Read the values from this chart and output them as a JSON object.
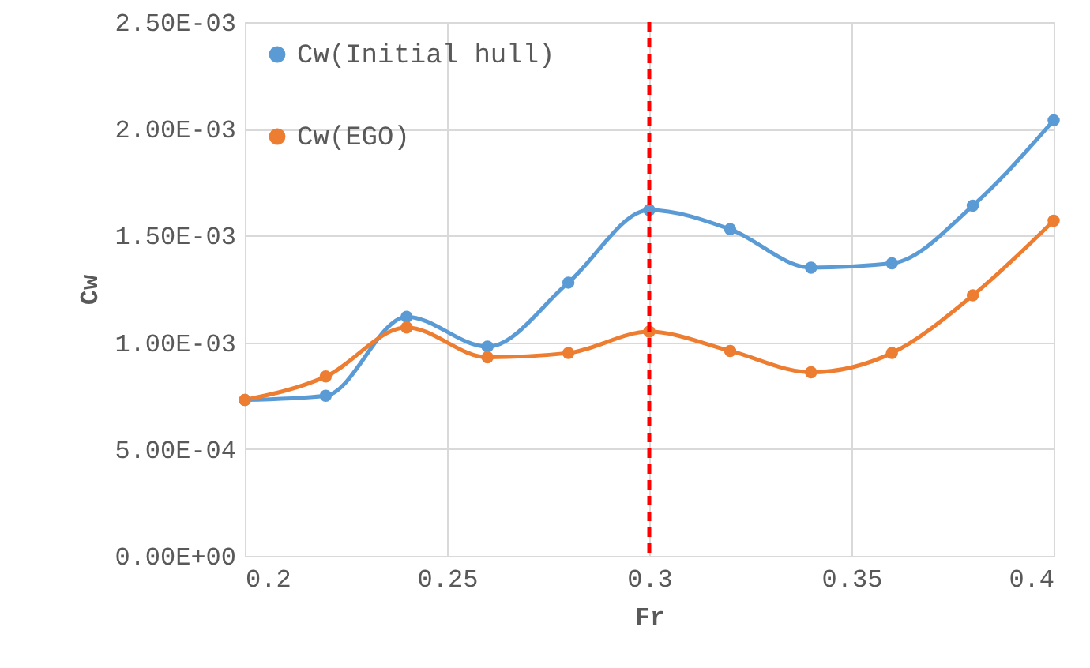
{
  "chart_data": {
    "type": "line",
    "xlabel": "Fr",
    "ylabel": "Cw",
    "x": [
      0.2,
      0.22,
      0.24,
      0.26,
      0.28,
      0.3,
      0.32,
      0.34,
      0.36,
      0.38,
      0.4
    ],
    "series": [
      {
        "name": "Cw(Initial hull)",
        "color": "#5b9bd5",
        "values": [
          0.00073,
          0.00075,
          0.00112,
          0.00098,
          0.00128,
          0.00162,
          0.00153,
          0.00135,
          0.00137,
          0.00164,
          0.00204
        ]
      },
      {
        "name": "Cw(EGO)",
        "color": "#ed7d31",
        "values": [
          0.00073,
          0.00084,
          0.00107,
          0.00093,
          0.00095,
          0.00105,
          0.00096,
          0.00086,
          0.00095,
          0.00122,
          0.00157
        ]
      }
    ],
    "xlim": [
      0.2,
      0.4
    ],
    "xticks": [
      0.2,
      0.25,
      0.3,
      0.35,
      0.4
    ],
    "ylim": [
      0,
      0.0025
    ],
    "yticks": [
      {
        "value": 0,
        "label": "0.00E+00"
      },
      {
        "value": 0.0005,
        "label": "5.00E-04"
      },
      {
        "value": 0.001,
        "label": "1.00E-03"
      },
      {
        "value": 0.0015,
        "label": "1.50E-03"
      },
      {
        "value": 0.002,
        "label": "2.00E-03"
      },
      {
        "value": 0.0025,
        "label": "2.50E-03"
      }
    ],
    "ref_lines": [
      {
        "axis": "x",
        "value": 0.3,
        "color": "#ff0000",
        "line_style": "dashed"
      }
    ],
    "grid": true,
    "legend": "top left",
    "marker": "circle",
    "line_style": "solid"
  }
}
